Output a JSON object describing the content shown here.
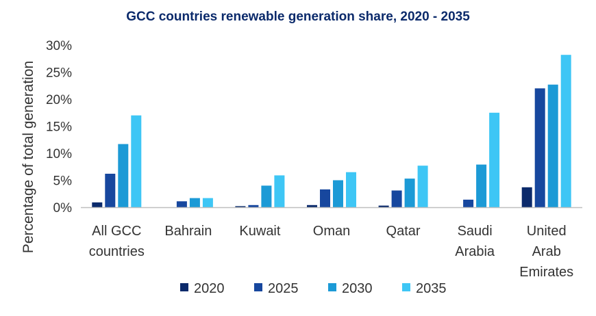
{
  "chart_data": {
    "type": "bar",
    "title": "GCC countries renewable generation share, 2020 - 2035",
    "ylabel": "Percentage of total generation",
    "xlabel": "",
    "ylim": [
      0,
      30
    ],
    "yticks": [
      "0%",
      "5%",
      "10%",
      "15%",
      "20%",
      "25%",
      "30%"
    ],
    "grid": false,
    "legend_position": "bottom",
    "categories": [
      [
        "All GCC",
        "countries"
      ],
      [
        "Bahrain"
      ],
      [
        "Kuwait"
      ],
      [
        "Oman"
      ],
      [
        "Qatar"
      ],
      [
        "Saudi",
        "Arabia"
      ],
      [
        "United",
        "Arab",
        "Emirates"
      ]
    ],
    "series": [
      {
        "name": "2020",
        "color": "#0b2a6b",
        "values": [
          0.9,
          0.0,
          0.2,
          0.4,
          0.3,
          0.0,
          3.7
        ]
      },
      {
        "name": "2025",
        "color": "#17479e",
        "values": [
          6.2,
          1.1,
          0.4,
          3.3,
          3.1,
          1.4,
          22.0
        ]
      },
      {
        "name": "2030",
        "color": "#1c9ad6",
        "values": [
          11.7,
          1.7,
          4.0,
          5.0,
          5.3,
          7.9,
          22.7
        ]
      },
      {
        "name": "2035",
        "color": "#3ec6f5",
        "values": [
          17.0,
          1.7,
          5.9,
          6.5,
          7.7,
          17.5,
          28.2
        ]
      }
    ]
  }
}
